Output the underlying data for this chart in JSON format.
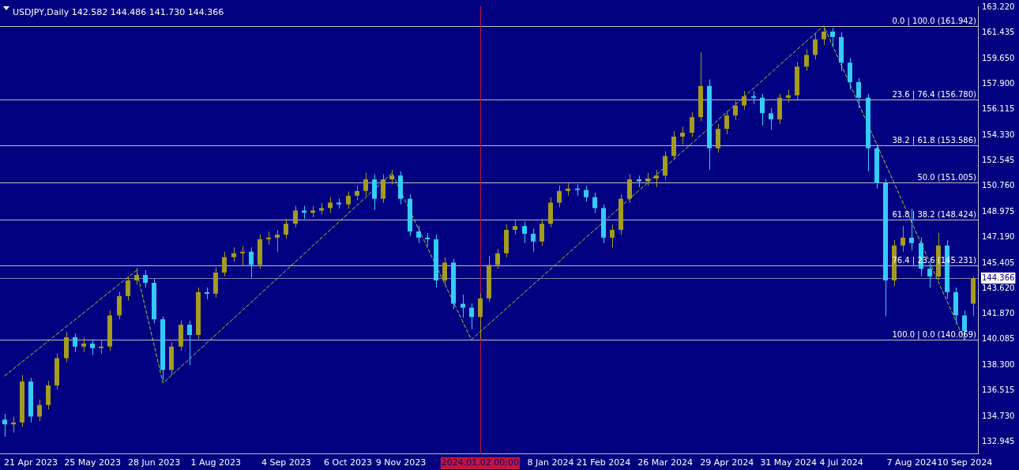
{
  "chart_data": {
    "type": "candlestick",
    "title": "USDJPY,Daily 142.582 144.486 141.730 144.366",
    "categories": [
      null,
      null,
      null,
      "21 Apr 2023",
      null,
      null,
      null,
      null,
      null,
      null,
      "25 May 2023",
      null,
      null,
      null,
      null,
      null,
      null,
      "28 Jun 2023",
      null,
      null,
      null,
      null,
      null,
      null,
      "1 Aug 2023",
      null,
      null,
      null,
      null,
      null,
      null,
      null,
      "4 Sep 2023",
      null,
      null,
      null,
      null,
      null,
      null,
      "6 Oct 2023",
      null,
      null,
      null,
      null,
      null,
      "9 Nov 2023",
      null,
      null,
      null,
      null,
      null,
      null,
      null,
      null,
      "2024.01.02 00:00",
      null,
      null,
      null,
      null,
      null,
      null,
      null,
      "8 Jan 2024",
      null,
      null,
      null,
      null,
      null,
      "21 Feb 2024",
      null,
      null,
      null,
      null,
      null,
      null,
      "26 Mar 2024",
      null,
      null,
      null,
      null,
      null,
      null,
      "29 Apr 2024",
      null,
      null,
      null,
      null,
      null,
      null,
      "31 May 2024",
      null,
      null,
      null,
      null,
      null,
      "4 Jul 2024",
      null,
      null,
      null,
      null,
      null,
      null,
      null,
      "7 Aug 2024",
      null,
      null,
      null,
      null,
      null,
      "10 Sep 2024",
      null
    ],
    "series": [
      {
        "type": "candlestick",
        "ohlc": [
          [
            134.5,
            134.9,
            133.3,
            134.17
          ],
          [
            134.17,
            134.7,
            133.6,
            134.3
          ],
          [
            134.3,
            137.6,
            134.0,
            137.15
          ],
          [
            137.15,
            137.4,
            134.3,
            134.71
          ],
          [
            134.71,
            135.9,
            134.4,
            135.52
          ],
          [
            135.52,
            137.2,
            135.2,
            136.88
          ],
          [
            136.88,
            139.1,
            136.6,
            138.78
          ],
          [
            138.78,
            140.6,
            138.5,
            140.24
          ],
          [
            140.24,
            140.5,
            139.2,
            139.59
          ],
          [
            139.59,
            140.2,
            139.2,
            139.8
          ],
          [
            139.8,
            140.1,
            139.0,
            139.48
          ],
          [
            139.48,
            140.0,
            139.1,
            139.59
          ],
          [
            139.59,
            142.1,
            139.3,
            141.76
          ],
          [
            141.76,
            143.4,
            141.5,
            143.11
          ],
          [
            143.11,
            144.5,
            142.8,
            144.2
          ],
          [
            144.2,
            145.07,
            143.9,
            144.58
          ],
          [
            144.58,
            144.9,
            143.7,
            144.03
          ],
          [
            144.03,
            144.3,
            141.2,
            141.49
          ],
          [
            141.49,
            141.7,
            137.24,
            137.96
          ],
          [
            137.96,
            139.9,
            137.6,
            139.59
          ],
          [
            139.59,
            141.4,
            139.3,
            141.11
          ],
          [
            141.11,
            141.4,
            138.3,
            140.4
          ],
          [
            140.4,
            143.7,
            140.1,
            143.38
          ],
          [
            143.38,
            143.7,
            142.9,
            143.27
          ],
          [
            143.27,
            145.1,
            143.0,
            144.74
          ],
          [
            144.74,
            146.2,
            144.5,
            145.82
          ],
          [
            145.82,
            146.5,
            145.5,
            146.09
          ],
          [
            146.09,
            146.6,
            145.2,
            146.2
          ],
          [
            146.2,
            146.5,
            144.4,
            145.28
          ],
          [
            145.28,
            147.4,
            145.0,
            147.07
          ],
          [
            147.07,
            147.6,
            146.7,
            147.18
          ],
          [
            147.18,
            147.7,
            146.2,
            147.39
          ],
          [
            147.39,
            148.5,
            147.1,
            148.15
          ],
          [
            148.15,
            149.4,
            147.9,
            149.07
          ],
          [
            149.07,
            149.4,
            148.5,
            148.91
          ],
          [
            148.91,
            149.4,
            148.6,
            149.07
          ],
          [
            149.07,
            149.6,
            148.8,
            149.24
          ],
          [
            149.24,
            150.0,
            148.9,
            149.62
          ],
          [
            149.62,
            149.9,
            149.2,
            149.5
          ],
          [
            149.5,
            150.4,
            149.2,
            150.1
          ],
          [
            150.1,
            150.8,
            149.8,
            150.43
          ],
          [
            150.43,
            151.7,
            150.1,
            151.24
          ],
          [
            151.24,
            151.6,
            149.1,
            149.89
          ],
          [
            149.89,
            151.6,
            149.6,
            151.24
          ],
          [
            151.24,
            151.91,
            150.9,
            151.51
          ],
          [
            151.51,
            151.8,
            149.5,
            149.89
          ],
          [
            149.89,
            150.2,
            147.3,
            147.61
          ],
          [
            147.61,
            148.0,
            146.8,
            147.18
          ],
          [
            147.18,
            147.5,
            146.6,
            147.07
          ],
          [
            147.07,
            147.4,
            143.7,
            144.2
          ],
          [
            144.2,
            145.8,
            143.9,
            145.44
          ],
          [
            145.44,
            145.7,
            142.2,
            142.57
          ],
          [
            142.57,
            143.2,
            141.6,
            142.3
          ],
          [
            142.3,
            142.6,
            140.8,
            141.65
          ],
          [
            141.65,
            143.3,
            140.07,
            142.95
          ],
          [
            142.95,
            145.9,
            142.7,
            145.28
          ],
          [
            145.28,
            146.4,
            145.0,
            146.09
          ],
          [
            146.09,
            148.1,
            145.8,
            147.72
          ],
          [
            147.72,
            148.4,
            147.4,
            147.99
          ],
          [
            147.99,
            148.3,
            146.8,
            147.45
          ],
          [
            147.45,
            147.8,
            146.2,
            146.91
          ],
          [
            146.91,
            148.5,
            146.6,
            148.15
          ],
          [
            148.15,
            150.0,
            147.9,
            149.62
          ],
          [
            149.62,
            150.8,
            149.3,
            150.43
          ],
          [
            150.43,
            150.95,
            150.1,
            150.6
          ],
          [
            150.6,
            150.9,
            150.1,
            150.5
          ],
          [
            150.5,
            150.8,
            149.7,
            150.0
          ],
          [
            150.0,
            150.3,
            148.9,
            149.24
          ],
          [
            149.24,
            149.5,
            146.8,
            147.18
          ],
          [
            147.18,
            148.1,
            146.5,
            147.72
          ],
          [
            147.72,
            150.2,
            147.4,
            149.89
          ],
          [
            149.89,
            151.6,
            149.6,
            151.24
          ],
          [
            151.24,
            151.5,
            150.7,
            151.1
          ],
          [
            151.1,
            151.7,
            150.8,
            151.3
          ],
          [
            151.3,
            151.9,
            150.7,
            151.5
          ],
          [
            151.5,
            153.2,
            151.2,
            152.87
          ],
          [
            152.87,
            154.6,
            152.6,
            154.22
          ],
          [
            154.22,
            154.9,
            153.7,
            154.49
          ],
          [
            154.49,
            155.9,
            154.2,
            155.58
          ],
          [
            155.58,
            160.1,
            155.3,
            157.75
          ],
          [
            157.75,
            158.2,
            151.9,
            153.41
          ],
          [
            153.41,
            155.1,
            153.1,
            154.76
          ],
          [
            154.76,
            156.0,
            154.4,
            155.69
          ],
          [
            155.69,
            156.7,
            155.4,
            156.39
          ],
          [
            156.39,
            157.4,
            156.1,
            157.04
          ],
          [
            157.04,
            157.4,
            156.5,
            156.93
          ],
          [
            156.93,
            157.2,
            155.0,
            155.85
          ],
          [
            155.85,
            156.2,
            154.7,
            155.42
          ],
          [
            155.42,
            157.2,
            155.1,
            156.93
          ],
          [
            156.93,
            157.5,
            156.6,
            157.1
          ],
          [
            157.1,
            159.4,
            156.8,
            159.1
          ],
          [
            159.1,
            160.3,
            158.8,
            159.91
          ],
          [
            159.91,
            161.4,
            159.6,
            161.0
          ],
          [
            161.0,
            161.94,
            160.6,
            161.54
          ],
          [
            161.54,
            161.8,
            160.5,
            161.16
          ],
          [
            161.16,
            161.5,
            158.8,
            159.37
          ],
          [
            159.37,
            159.7,
            157.5,
            158.02
          ],
          [
            158.02,
            158.3,
            156.2,
            156.93
          ],
          [
            156.93,
            157.2,
            151.8,
            153.41
          ],
          [
            153.41,
            153.7,
            150.6,
            150.97
          ],
          [
            150.97,
            151.3,
            141.7,
            144.2
          ],
          [
            144.2,
            147.0,
            143.8,
            146.63
          ],
          [
            146.63,
            148.0,
            146.2,
            147.18
          ],
          [
            147.18,
            149.2,
            146.3,
            146.8
          ],
          [
            146.8,
            147.2,
            144.5,
            145.01
          ],
          [
            145.01,
            145.4,
            143.7,
            144.47
          ],
          [
            144.47,
            147.5,
            144.2,
            146.63
          ],
          [
            146.63,
            147.0,
            142.9,
            143.38
          ],
          [
            143.38,
            143.7,
            141.2,
            141.76
          ],
          [
            141.76,
            142.1,
            140.07,
            140.67
          ],
          [
            142.582,
            144.486,
            141.73,
            144.366
          ]
        ],
        "colors": [
          "#33ccff",
          "#a59c1e",
          "#a59c1e",
          "#33ccff",
          "#a59c1e",
          "#a59c1e",
          "#a59c1e",
          "#a59c1e",
          "#33ccff",
          "#a59c1e",
          "#33ccff",
          "#a59c1e",
          "#a59c1e",
          "#a59c1e",
          "#a59c1e",
          "#a59c1e",
          "#33ccff",
          "#33ccff",
          "#33ccff",
          "#a59c1e",
          "#a59c1e",
          "#33ccff",
          "#a59c1e",
          "#33ccff",
          "#a59c1e",
          "#a59c1e",
          "#a59c1e",
          "#a59c1e",
          "#33ccff",
          "#a59c1e",
          "#a59c1e",
          "#a59c1e",
          "#a59c1e",
          "#a59c1e",
          "#33ccff",
          "#a59c1e",
          "#a59c1e",
          "#a59c1e",
          "#33ccff",
          "#a59c1e",
          "#a59c1e",
          "#a59c1e",
          "#33ccff",
          "#a59c1e",
          "#a59c1e",
          "#33ccff",
          "#33ccff",
          "#33ccff",
          "#33ccff",
          "#33ccff",
          "#a59c1e",
          "#33ccff",
          "#33ccff",
          "#33ccff",
          "#a59c1e",
          "#a59c1e",
          "#a59c1e",
          "#a59c1e",
          "#a59c1e",
          "#33ccff",
          "#33ccff",
          "#a59c1e",
          "#a59c1e",
          "#a59c1e",
          "#a59c1e",
          "#33ccff",
          "#33ccff",
          "#33ccff",
          "#33ccff",
          "#a59c1e",
          "#a59c1e",
          "#a59c1e",
          "#33ccff",
          "#a59c1e",
          "#a59c1e",
          "#a59c1e",
          "#a59c1e",
          "#a59c1e",
          "#a59c1e",
          "#a59c1e",
          "#33ccff",
          "#a59c1e",
          "#a59c1e",
          "#a59c1e",
          "#a59c1e",
          "#33ccff",
          "#33ccff",
          "#33ccff",
          "#a59c1e",
          "#a59c1e",
          "#a59c1e",
          "#a59c1e",
          "#a59c1e",
          "#a59c1e",
          "#33ccff",
          "#33ccff",
          "#33ccff",
          "#33ccff",
          "#33ccff",
          "#33ccff",
          "#33ccff",
          "#a59c1e",
          "#a59c1e",
          "#33ccff",
          "#33ccff",
          "#33ccff",
          "#a59c1e",
          "#33ccff",
          "#33ccff",
          "#33ccff",
          "#a59c1e"
        ]
      },
      {
        "type": "line",
        "color": "#9acd32",
        "line_style": "dashed",
        "values": [
          137.53,
          null,
          null,
          null,
          null,
          null,
          null,
          null,
          null,
          null,
          null,
          null,
          null,
          null,
          null,
          144.9,
          null,
          null,
          137.04,
          null,
          null,
          null,
          null,
          null,
          null,
          null,
          null,
          null,
          null,
          null,
          null,
          null,
          null,
          null,
          null,
          null,
          null,
          null,
          null,
          null,
          null,
          null,
          null,
          null,
          151.67,
          null,
          null,
          null,
          null,
          null,
          null,
          null,
          null,
          140.07,
          null,
          null,
          null,
          null,
          null,
          null,
          null,
          null,
          null,
          null,
          null,
          null,
          null,
          null,
          null,
          null,
          null,
          null,
          null,
          null,
          null,
          null,
          null,
          null,
          null,
          null,
          null,
          null,
          null,
          null,
          null,
          null,
          null,
          null,
          null,
          null,
          null,
          null,
          null,
          161.94,
          null,
          null,
          null,
          null,
          null,
          null,
          null,
          null,
          null,
          null,
          null,
          null,
          null,
          null,
          null,
          140.0,
          null
        ]
      }
    ],
    "ylim": [
      132.1,
      163.3
    ],
    "yticks": [
      {
        "value": 163.22,
        "label": "163.220"
      },
      {
        "value": 161.435,
        "label": "161.435"
      },
      {
        "value": 159.65,
        "label": "159.650"
      },
      {
        "value": 157.9,
        "label": "157.900"
      },
      {
        "value": 156.115,
        "label": "156.115"
      },
      {
        "value": 154.33,
        "label": "154.330"
      },
      {
        "value": 152.545,
        "label": "152.545"
      },
      {
        "value": 150.76,
        "label": "150.760"
      },
      {
        "value": 148.975,
        "label": "148.975"
      },
      {
        "value": 147.19,
        "label": "147.190"
      },
      {
        "value": 145.405,
        "label": "145.405"
      },
      {
        "value": 144.366,
        "label": "144.366"
      },
      {
        "value": 143.62,
        "label": "143.620"
      },
      {
        "value": 141.87,
        "label": "141.870"
      },
      {
        "value": 140.085,
        "label": "140.085"
      },
      {
        "value": 138.3,
        "label": "138.300"
      },
      {
        "value": 136.515,
        "label": "136.515"
      },
      {
        "value": 134.73,
        "label": "134.730"
      },
      {
        "value": 132.945,
        "label": "132.945"
      }
    ],
    "ref_lines": [
      {
        "axis": "y",
        "value": 161.942,
        "label": "0.0 | 100.0 (161.942)",
        "color": "#c0c0c0"
      },
      {
        "axis": "y",
        "value": 156.78,
        "label": "23.6 | 76.4 (156.780)",
        "color": "#c0c0c0"
      },
      {
        "axis": "y",
        "value": 153.586,
        "label": "38.2 | 61.8 (153.586)",
        "color": "#c0c0c0"
      },
      {
        "axis": "y",
        "value": 151.005,
        "label": "50.0 (151.005)",
        "color": "#c0c0c0"
      },
      {
        "axis": "y",
        "value": 148.424,
        "label": "61.8 | 38.2 (148.424)",
        "color": "#c0c0c0"
      },
      {
        "axis": "y",
        "value": 145.231,
        "label": "76.4 | 23.6 (145.231)",
        "color": "#c0c0c0"
      },
      {
        "axis": "y",
        "value": 140.069,
        "label": "100.0 | 0.0 (140.069)",
        "color": "#c0c0c0"
      },
      {
        "axis": "y",
        "value": 144.366,
        "color": "#8080b0"
      },
      {
        "axis": "x",
        "value": "2024.01.02 00:00",
        "color": "#c0143c"
      }
    ]
  }
}
